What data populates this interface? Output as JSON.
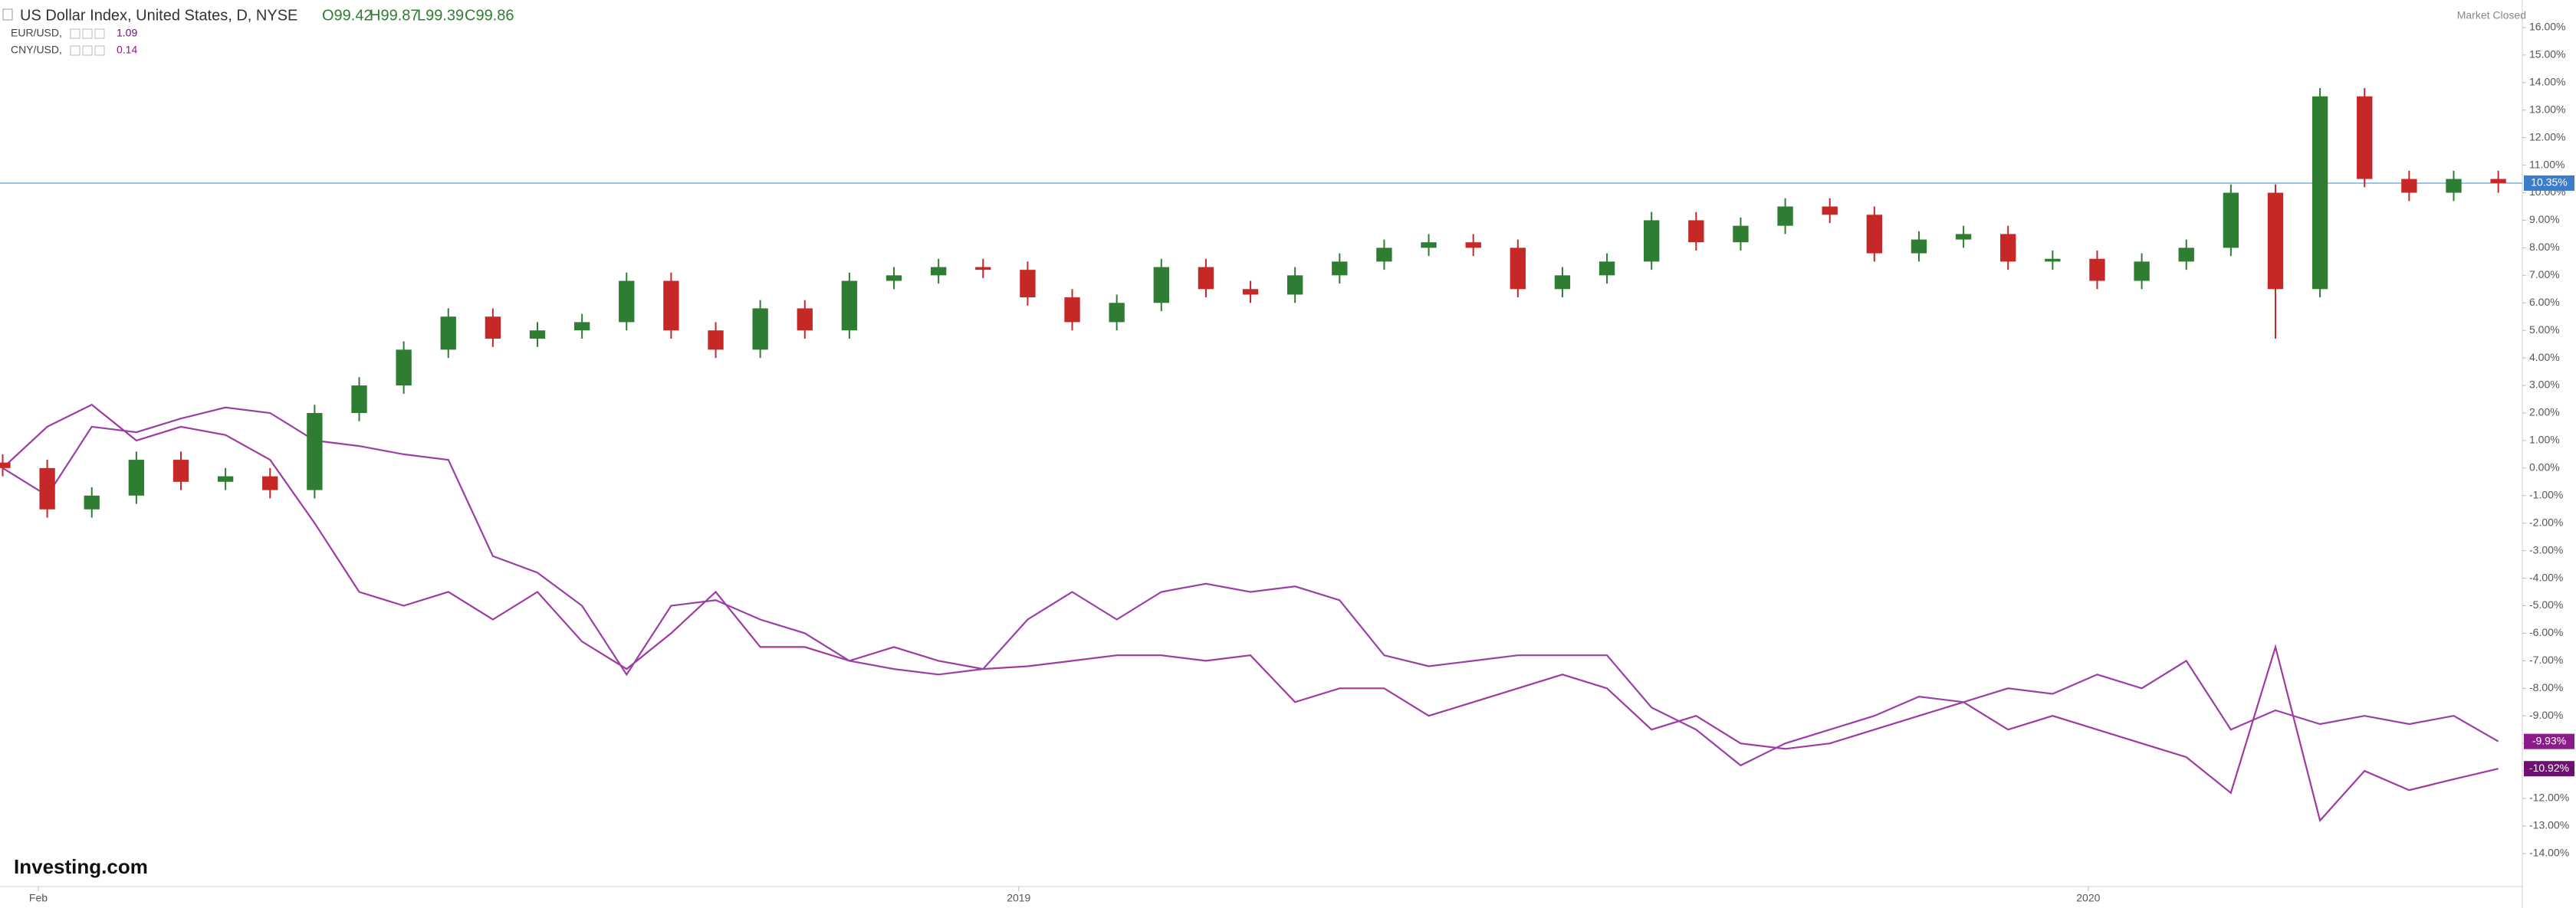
{
  "chart_data": {
    "type": "candlestick",
    "title": "US Dollar Index, United States, D, NYSE",
    "ohlc_text": [
      "O99.42",
      "H99.87",
      "L99.39",
      "C99.86"
    ],
    "status": "Market Closed",
    "brand": "Investing.com",
    "x": [
      0.6,
      1.1,
      1.6,
      2.1,
      2.6,
      3.1,
      3.6,
      4.1,
      4.6,
      5.1,
      5.6,
      6.1,
      6.6,
      7.1,
      7.6,
      8.1,
      8.6,
      9.1,
      9.6,
      10.1,
      10.6,
      11.1,
      11.6,
      12.1,
      12.6,
      13.1,
      13.6,
      14.1,
      14.6,
      15.1,
      15.6,
      16.1,
      16.6,
      17.1,
      17.6,
      18.1,
      18.6,
      19.1,
      19.6,
      20.1,
      20.6,
      21.1,
      21.6,
      22.1,
      22.6,
      23.1,
      23.6,
      24.1,
      24.6,
      25.1,
      25.6,
      26.1,
      26.6,
      27.1,
      27.6,
      28.1,
      28.6
    ],
    "xlim": [
      0.57,
      28.87
    ],
    "xticks": [
      {
        "value": 1,
        "label": "Feb"
      },
      {
        "value": 12,
        "label": "2019"
      },
      {
        "value": 24,
        "label": "2020"
      }
    ],
    "ylim": [
      -15.2,
      17.0
    ],
    "yticks": [
      {
        "value": 16,
        "label": "16.00%"
      },
      {
        "value": 15,
        "label": "15.00%"
      },
      {
        "value": 14,
        "label": "14.00%"
      },
      {
        "value": 13,
        "label": "13.00%"
      },
      {
        "value": 12,
        "label": "12.00%"
      },
      {
        "value": 11,
        "label": "11.00%"
      },
      {
        "value": 10,
        "label": "10.00%"
      },
      {
        "value": 9,
        "label": "9.00%"
      },
      {
        "value": 8,
        "label": "8.00%"
      },
      {
        "value": 7,
        "label": "7.00%"
      },
      {
        "value": 6,
        "label": "6.00%"
      },
      {
        "value": 5,
        "label": "5.00%"
      },
      {
        "value": 4,
        "label": "4.00%"
      },
      {
        "value": 3,
        "label": "3.00%"
      },
      {
        "value": 2,
        "label": "2.00%"
      },
      {
        "value": 1,
        "label": "1.00%"
      },
      {
        "value": 0,
        "label": "0.00%"
      },
      {
        "value": -1,
        "label": "-1.00%"
      },
      {
        "value": -2,
        "label": "-2.00%"
      },
      {
        "value": -3,
        "label": "-3.00%"
      },
      {
        "value": -4,
        "label": "-4.00%"
      },
      {
        "value": -5,
        "label": "-5.00%"
      },
      {
        "value": -6,
        "label": "-6.00%"
      },
      {
        "value": -7,
        "label": "-7.00%"
      },
      {
        "value": -8,
        "label": "-8.00%"
      },
      {
        "value": -9,
        "label": "-9.00%"
      },
      {
        "value": -10,
        "label": "-10.00%"
      },
      {
        "value": -11,
        "label": "-11.00%"
      },
      {
        "value": -12,
        "label": "-12.00%"
      },
      {
        "value": -13,
        "label": "-13.00%"
      },
      {
        "value": -14,
        "label": "-14.00%"
      }
    ],
    "ohlc": {
      "up_color": "#2e7d32",
      "down_color": "#c62828",
      "price_line_color": "#9cc3e6",
      "label_color": "#3d7cc9",
      "last_label": "10.35%",
      "open": [
        0.2,
        0,
        -1.5,
        -1.0,
        0.3,
        -0.5,
        -0.3,
        -0.8,
        2.0,
        3.0,
        4.3,
        5.5,
        4.7,
        5.0,
        5.3,
        6.8,
        5.0,
        4.3,
        5.8,
        5.0,
        6.8,
        7.0,
        7.3,
        7.2,
        6.2,
        5.3,
        6.0,
        7.3,
        6.5,
        6.3,
        7.0,
        7.5,
        8.0,
        8.2,
        8.0,
        6.5,
        7.0,
        7.5,
        9.0,
        8.2,
        8.8,
        9.5,
        9.2,
        7.8,
        8.3,
        8.5,
        7.5,
        7.6,
        6.8,
        7.5,
        8.0,
        10.0,
        6.5,
        13.5,
        10.5,
        10.0,
        10.5
      ],
      "high": [
        0.5,
        0.3,
        -0.7,
        0.6,
        0.6,
        0,
        0,
        2.3,
        3.3,
        4.6,
        5.8,
        5.8,
        5.3,
        5.6,
        7.1,
        7.1,
        5.3,
        6.1,
        6.1,
        7.1,
        7.3,
        7.6,
        7.6,
        7.5,
        6.5,
        6.3,
        7.6,
        7.6,
        6.8,
        7.3,
        7.8,
        8.3,
        8.5,
        8.5,
        8.3,
        7.3,
        7.8,
        9.3,
        9.3,
        9.1,
        9.8,
        9.8,
        9.5,
        8.6,
        8.8,
        8.8,
        7.9,
        7.9,
        7.8,
        8.3,
        10.3,
        10.3,
        13.8,
        13.8,
        10.8,
        10.8,
        10.8
      ],
      "low": [
        -0.3,
        -1.8,
        -1.8,
        -1.3,
        -0.8,
        -0.8,
        -1.1,
        -1.1,
        1.7,
        2.7,
        4.0,
        4.4,
        4.4,
        4.7,
        5.0,
        4.7,
        4.0,
        4.0,
        4.7,
        4.7,
        6.5,
        6.7,
        6.9,
        5.9,
        5.0,
        5.0,
        5.7,
        6.2,
        6.0,
        6.0,
        6.7,
        7.2,
        7.7,
        7.7,
        6.2,
        6.2,
        6.7,
        7.2,
        7.9,
        7.9,
        8.5,
        8.9,
        7.5,
        7.5,
        8.0,
        7.2,
        7.2,
        6.5,
        6.5,
        7.2,
        7.7,
        4.7,
        6.2,
        10.2,
        9.7,
        9.7,
        10.0
      ],
      "close": [
        0,
        -1.5,
        -1.0,
        0.3,
        -0.5,
        -0.3,
        -0.8,
        2.0,
        3.0,
        4.3,
        5.5,
        4.7,
        5.0,
        5.3,
        6.8,
        5.0,
        4.3,
        5.8,
        5.0,
        6.8,
        7.0,
        7.3,
        7.2,
        6.2,
        5.3,
        6.0,
        7.3,
        6.5,
        6.3,
        7.0,
        7.5,
        8.0,
        8.2,
        8.0,
        6.5,
        7.0,
        7.5,
        9.0,
        8.2,
        8.8,
        9.5,
        9.2,
        7.8,
        8.3,
        8.5,
        7.5,
        7.6,
        6.8,
        7.5,
        8.0,
        10.0,
        6.5,
        13.5,
        10.5,
        10.0,
        10.5,
        10.35
      ]
    },
    "series": [
      {
        "name": "EUR/USD,",
        "legend_value": "1.09",
        "color": "#a03aa0",
        "label_color": "#6d1070",
        "last_label": "-10.92%",
        "values": [
          0,
          1.5,
          2.3,
          1.0,
          1.5,
          1.2,
          0.3,
          -2.0,
          -4.5,
          -5.0,
          -4.5,
          -5.5,
          -4.5,
          -6.3,
          -7.3,
          -6.0,
          -4.5,
          -6.5,
          -6.5,
          -7.0,
          -6.5,
          -7.0,
          -7.3,
          -7.2,
          -7.0,
          -6.8,
          -6.8,
          -7.0,
          -6.8,
          -8.5,
          -8.0,
          -8.0,
          -9.0,
          -8.5,
          -8.0,
          -7.5,
          -8.0,
          -9.5,
          -9.0,
          -10.0,
          -10.2,
          -10.0,
          -9.5,
          -9.0,
          -8.5,
          -9.5,
          -9.0,
          -9.5,
          -10.0,
          -10.5,
          -11.8,
          -6.5,
          -12.8,
          -11.0,
          -11.7,
          -11.3,
          -10.92
        ]
      },
      {
        "name": "CNY/USD,",
        "legend_value": "0.14",
        "color": "#9b3fa8",
        "label_color": "#8b1a8b",
        "last_label": "-9.93%",
        "values": [
          0,
          -1.0,
          1.5,
          1.3,
          1.8,
          2.2,
          2.0,
          1.0,
          0.8,
          0.5,
          0.3,
          -3.2,
          -3.8,
          -5.0,
          -7.5,
          -5.0,
          -4.8,
          -5.5,
          -6.0,
          -7.0,
          -7.3,
          -7.5,
          -7.3,
          -5.5,
          -4.5,
          -5.5,
          -4.5,
          -4.2,
          -4.5,
          -4.3,
          -4.8,
          -6.8,
          -7.2,
          -7.0,
          -6.8,
          -6.8,
          -6.8,
          -8.7,
          -9.5,
          -10.8,
          -10.0,
          -9.5,
          -9.0,
          -8.3,
          -8.5,
          -8.0,
          -8.2,
          -7.5,
          -8.0,
          -7.0,
          -9.5,
          -8.8,
          -9.3,
          -9.0,
          -9.3,
          -9.0,
          -9.93
        ]
      }
    ]
  }
}
